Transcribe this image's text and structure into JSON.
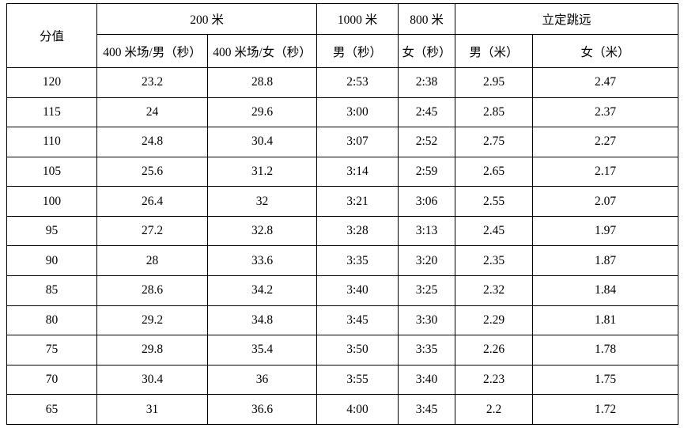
{
  "colors": {
    "background": "#ffffff",
    "border": "#000000",
    "text": "#000000"
  },
  "table": {
    "header": {
      "score_label": "分值",
      "group_200m": "200 米",
      "col_200m_male": "400 米场/男（秒）",
      "col_200m_female": "400 米场/女（秒）",
      "group_1000m": "1000 米",
      "col_1000m_male": "男（秒）",
      "group_800m": "800 米",
      "col_800m_female": "女（秒）",
      "group_jump": "立定跳远",
      "col_jump_male": "男（米）",
      "col_jump_female": "女（米）"
    },
    "rows": [
      [
        "120",
        "23.2",
        "28.8",
        "2:53",
        "2:38",
        "2.95",
        "2.47"
      ],
      [
        "115",
        "24",
        "29.6",
        "3:00",
        "2:45",
        "2.85",
        "2.37"
      ],
      [
        "110",
        "24.8",
        "30.4",
        "3:07",
        "2:52",
        "2.75",
        "2.27"
      ],
      [
        "105",
        "25.6",
        "31.2",
        "3:14",
        "2:59",
        "2.65",
        "2.17"
      ],
      [
        "100",
        "26.4",
        "32",
        "3:21",
        "3:06",
        "2.55",
        "2.07"
      ],
      [
        "95",
        "27.2",
        "32.8",
        "3:28",
        "3:13",
        "2.45",
        "1.97"
      ],
      [
        "90",
        "28",
        "33.6",
        "3:35",
        "3:20",
        "2.35",
        "1.87"
      ],
      [
        "85",
        "28.6",
        "34.2",
        "3:40",
        "3:25",
        "2.32",
        "1.84"
      ],
      [
        "80",
        "29.2",
        "34.8",
        "3:45",
        "3:30",
        "2.29",
        "1.81"
      ],
      [
        "75",
        "29.8",
        "35.4",
        "3:50",
        "3:35",
        "2.26",
        "1.78"
      ],
      [
        "70",
        "30.4",
        "36",
        "3:55",
        "3:40",
        "2.23",
        "1.75"
      ],
      [
        "65",
        "31",
        "36.6",
        "4:00",
        "3:45",
        "2.2",
        "1.72"
      ]
    ]
  }
}
